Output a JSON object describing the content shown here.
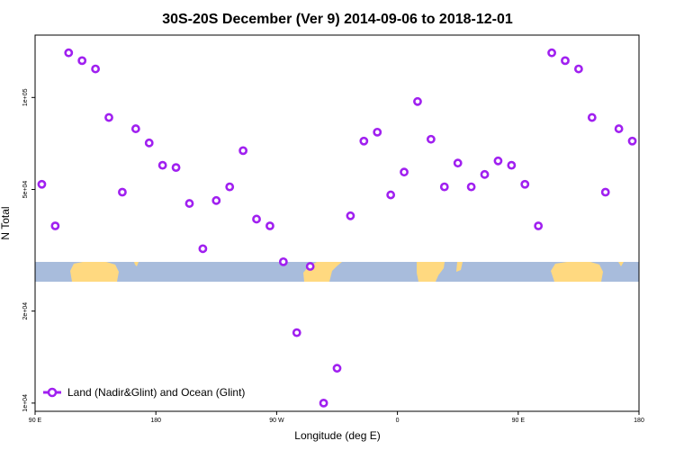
{
  "chart_data": {
    "type": "scatter",
    "title": "30S-20S December (Ver 9)   2014-09-06 to 2018-12-01",
    "xlabel": "Longitude (deg E)",
    "ylabel": "N Total",
    "x_ticks": [
      {
        "value": 90,
        "label": "90 E"
      },
      {
        "value": 180,
        "label": "180"
      },
      {
        "value": 270,
        "label": "90 W"
      },
      {
        "value": 360,
        "label": "0"
      },
      {
        "value": 450,
        "label": "90 E"
      },
      {
        "value": 540,
        "label": "180"
      }
    ],
    "xlim": [
      90,
      540
    ],
    "y_scale": "log",
    "y_ticks": [
      {
        "value": 10000,
        "label": "1e+04"
      },
      {
        "value": 20000,
        "label": "2e+04"
      },
      {
        "value": 50000,
        "label": "5e+04"
      },
      {
        "value": 100000,
        "label": "1e+05"
      }
    ],
    "ylim": [
      9400,
      160000
    ],
    "series": [
      {
        "name": "Land (Nadir&Glint) and Ocean (Glint)",
        "color": "#a020f0",
        "marker": "open-circle",
        "points": [
          [
            95,
            52000
          ],
          [
            105,
            38000
          ],
          [
            115,
            140000
          ],
          [
            125,
            132000
          ],
          [
            135,
            124000
          ],
          [
            145,
            86000
          ],
          [
            155,
            49000
          ],
          [
            165,
            79000
          ],
          [
            175,
            71000
          ],
          [
            185,
            60000
          ],
          [
            195,
            59000
          ],
          [
            205,
            45000
          ],
          [
            215,
            32000
          ],
          [
            225,
            46000
          ],
          [
            235,
            51000
          ],
          [
            245,
            67000
          ],
          [
            255,
            40000
          ],
          [
            265,
            38000
          ],
          [
            275,
            29000
          ],
          [
            285,
            17000
          ],
          [
            295,
            28000
          ],
          [
            305,
            10000
          ],
          [
            315,
            13000
          ],
          [
            325,
            41000
          ],
          [
            335,
            72000
          ],
          [
            345,
            77000
          ],
          [
            355,
            48000
          ],
          [
            365,
            57000
          ],
          [
            375,
            97000
          ],
          [
            385,
            73000
          ],
          [
            395,
            51000
          ],
          [
            405,
            61000
          ],
          [
            415,
            51000
          ],
          [
            425,
            56000
          ],
          [
            435,
            62000
          ],
          [
            445,
            60000
          ],
          [
            455,
            52000
          ],
          [
            465,
            38000
          ],
          [
            475,
            140000
          ],
          [
            485,
            132000
          ],
          [
            495,
            124000
          ],
          [
            505,
            86000
          ],
          [
            515,
            49000
          ],
          [
            525,
            79000
          ],
          [
            535,
            72000
          ]
        ]
      }
    ],
    "legend_position": "bottom-left"
  }
}
